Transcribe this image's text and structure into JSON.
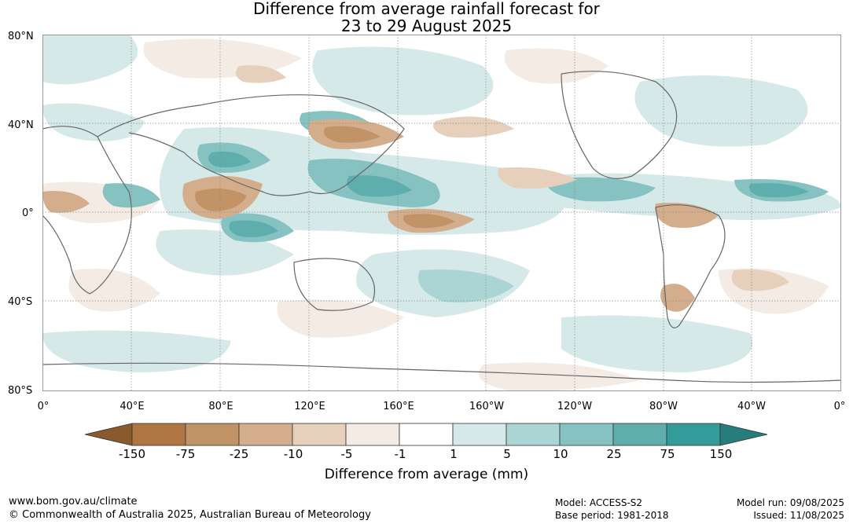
{
  "title_line1": "Difference from average rainfall forecast for",
  "title_line2": "23 to 29 August 2025",
  "lat_labels": [
    "80°N",
    "40°N",
    "0°",
    "40°S",
    "80°S"
  ],
  "lon_labels": [
    "0°",
    "40°E",
    "80°E",
    "120°E",
    "160°E",
    "160°W",
    "120°W",
    "80°W",
    "40°W",
    "0°"
  ],
  "colorbar": {
    "labels": [
      "-150",
      "-75",
      "-25",
      "-10",
      "-5",
      "-1",
      "1",
      "5",
      "10",
      "25",
      "75",
      "150"
    ],
    "colors": [
      "#8a5a2e",
      "#ad7642",
      "#c29366",
      "#d4ae8c",
      "#e6d0bc",
      "#f4ebe4",
      "#ffffff",
      "#d5e9e8",
      "#abd5d4",
      "#86c2c2",
      "#5eaeae",
      "#339b9a",
      "#267d7c"
    ],
    "title": "Difference from average (mm)"
  },
  "footer": {
    "url": "www.bom.gov.au/climate",
    "copyright": "© Commonwealth of Australia 2025, Australian Bureau of Meteorology",
    "model": "Model: ACCESS-S2",
    "base_period": "Base period: 1981-2018",
    "model_run": "Model run: 09/08/2025",
    "issued": "Issued: 11/08/2025"
  }
}
